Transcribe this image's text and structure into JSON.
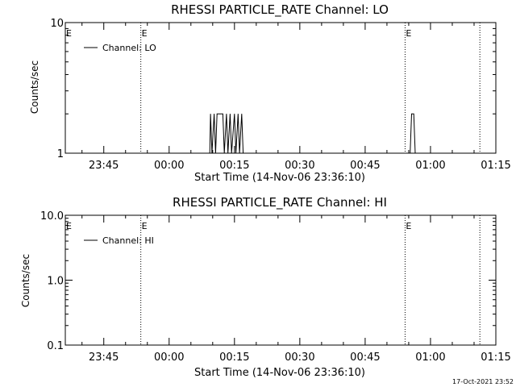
{
  "chart_data": [
    {
      "type": "line",
      "title": "RHESSI PARTICLE_RATE Channel: LO",
      "xlabel": "Start Time (14-Nov-06 23:36:10)",
      "ylabel": "Counts/sec",
      "yscale": "log",
      "ylim": [
        1,
        10
      ],
      "yticks": [
        {
          "value": 1,
          "label": "1"
        },
        {
          "value": 10,
          "label": "10"
        }
      ],
      "xlim": [
        "23:36:10",
        "01:15:00"
      ],
      "xticks": [
        "23:45",
        "00:00",
        "00:15",
        "00:30",
        "00:45",
        "01:00",
        "01:15"
      ],
      "legend": {
        "placement": "top-left"
      },
      "event_lines": [
        {
          "time": "23:53:30",
          "marker": "E"
        },
        {
          "time": "00:54:10",
          "marker": "E"
        },
        {
          "time": "01:11:20",
          "marker": ""
        }
      ],
      "series": [
        {
          "name": "Channel: LO",
          "points": [
            [
              "00:09:20",
              1
            ],
            [
              "00:09:30",
              2
            ],
            [
              "00:09:50",
              1
            ],
            [
              "00:10:20",
              2
            ],
            [
              "00:10:40",
              1
            ],
            [
              "00:11:00",
              2
            ],
            [
              "00:12:20",
              2
            ],
            [
              "00:12:40",
              1
            ],
            [
              "00:13:10",
              2
            ],
            [
              "00:13:30",
              1
            ],
            [
              "00:14:00",
              2
            ],
            [
              "00:14:20",
              1
            ],
            [
              "00:15:00",
              2
            ],
            [
              "00:15:20",
              1
            ],
            [
              "00:15:50",
              2
            ],
            [
              "00:16:10",
              1
            ],
            [
              "00:16:40",
              2
            ],
            [
              "00:17:00",
              1
            ],
            [
              "00:55:20",
              1
            ],
            [
              "00:55:40",
              2
            ],
            [
              "00:56:10",
              2
            ],
            [
              "00:56:30",
              1
            ]
          ]
        }
      ]
    },
    {
      "type": "line",
      "title": "RHESSI PARTICLE_RATE Channel: HI",
      "xlabel": "Start Time (14-Nov-06 23:36:10)",
      "ylabel": "Counts/sec",
      "yscale": "log",
      "ylim": [
        0.1,
        10
      ],
      "yticks": [
        {
          "value": 0.1,
          "label": "0.1"
        },
        {
          "value": 1,
          "label": "1.0"
        },
        {
          "value": 10,
          "label": "10.0"
        }
      ],
      "xlim": [
        "23:36:10",
        "01:15:00"
      ],
      "xticks": [
        "23:45",
        "00:00",
        "00:15",
        "00:30",
        "00:45",
        "01:00",
        "01:15"
      ],
      "legend": {
        "placement": "top-left"
      },
      "event_lines": [
        {
          "time": "23:53:30",
          "marker": "E"
        },
        {
          "time": "00:54:10",
          "marker": "E"
        },
        {
          "time": "01:11:20",
          "marker": ""
        }
      ],
      "series": [
        {
          "name": "Channel: HI",
          "points": []
        }
      ]
    }
  ],
  "footer": {
    "timestamp": "17-Oct-2021 23:52"
  }
}
